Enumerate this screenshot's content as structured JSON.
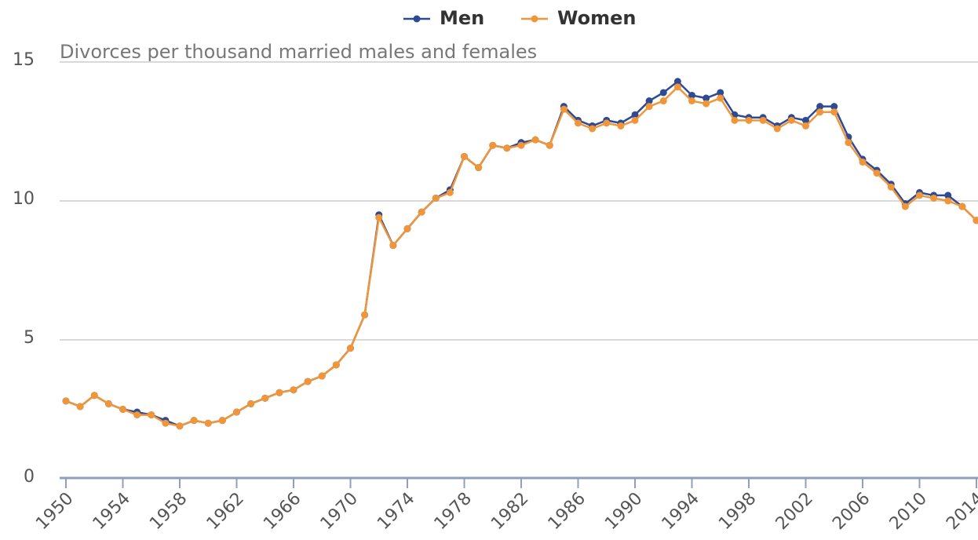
{
  "chart_data": {
    "type": "line",
    "subtitle": "Divorces per thousand married males and females",
    "x": [
      1950,
      1951,
      1952,
      1953,
      1954,
      1955,
      1956,
      1957,
      1958,
      1959,
      1960,
      1961,
      1962,
      1963,
      1964,
      1965,
      1966,
      1967,
      1968,
      1969,
      1970,
      1971,
      1972,
      1973,
      1974,
      1975,
      1976,
      1977,
      1978,
      1979,
      1980,
      1981,
      1982,
      1983,
      1984,
      1985,
      1986,
      1987,
      1988,
      1989,
      1990,
      1991,
      1992,
      1993,
      1994,
      1995,
      1996,
      1997,
      1998,
      1999,
      2000,
      2001,
      2002,
      2003,
      2004,
      2005,
      2006,
      2007,
      2008,
      2009,
      2010,
      2011,
      2012,
      2013,
      2014
    ],
    "series": [
      {
        "name": "Men",
        "color": "#2e4a94",
        "values": [
          2.8,
          2.6,
          3.0,
          2.7,
          2.5,
          2.4,
          2.3,
          2.1,
          1.9,
          2.1,
          2.0,
          2.1,
          2.4,
          2.7,
          2.9,
          3.1,
          3.2,
          3.5,
          3.7,
          4.1,
          4.7,
          5.9,
          9.5,
          8.4,
          9.0,
          9.6,
          10.1,
          10.4,
          11.6,
          11.2,
          12.0,
          11.9,
          12.1,
          12.2,
          12.0,
          13.4,
          12.9,
          12.7,
          12.9,
          12.8,
          13.1,
          13.6,
          13.9,
          14.3,
          13.8,
          13.7,
          13.9,
          13.1,
          13.0,
          13.0,
          12.7,
          13.0,
          12.9,
          13.4,
          13.4,
          12.3,
          11.5,
          11.1,
          10.6,
          9.9,
          10.3,
          10.2,
          10.2,
          9.8,
          9.3
        ]
      },
      {
        "name": "Women",
        "color": "#f0963a",
        "values": [
          2.8,
          2.6,
          3.0,
          2.7,
          2.5,
          2.3,
          2.3,
          2.0,
          1.9,
          2.1,
          2.0,
          2.1,
          2.4,
          2.7,
          2.9,
          3.1,
          3.2,
          3.5,
          3.7,
          4.1,
          4.7,
          5.9,
          9.4,
          8.4,
          9.0,
          9.6,
          10.1,
          10.3,
          11.6,
          11.2,
          12.0,
          11.9,
          12.0,
          12.2,
          12.0,
          13.3,
          12.8,
          12.6,
          12.8,
          12.7,
          12.9,
          13.4,
          13.6,
          14.1,
          13.6,
          13.5,
          13.7,
          12.9,
          12.9,
          12.9,
          12.6,
          12.9,
          12.7,
          13.2,
          13.2,
          12.1,
          11.4,
          11.0,
          10.5,
          9.8,
          10.2,
          10.1,
          10.0,
          9.8,
          9.3
        ]
      }
    ],
    "xlim": [
      1950,
      2014
    ],
    "xticks": [
      1950,
      1954,
      1958,
      1962,
      1966,
      1970,
      1974,
      1978,
      1982,
      1986,
      1990,
      1994,
      1998,
      2002,
      2006,
      2010,
      2014
    ],
    "ylim": [
      0,
      15
    ],
    "yticks": [
      0,
      5,
      10,
      15
    ],
    "grid": true,
    "legend": "top"
  }
}
